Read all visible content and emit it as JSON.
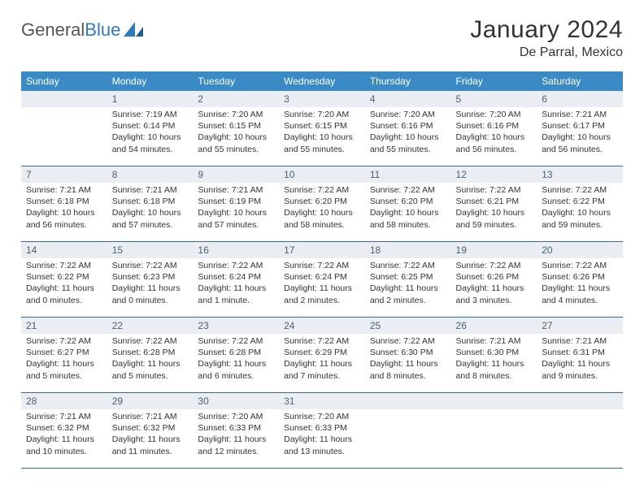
{
  "logo": {
    "text1": "General",
    "text2": "Blue"
  },
  "title": "January 2024",
  "location": "De Parral, Mexico",
  "colors": {
    "header_bg": "#3a8ac6",
    "header_text": "#ffffff",
    "daynum_bg": "#eaeef2",
    "daynum_text": "#4a6172",
    "rule": "#2f6fa3",
    "logo_blue": "#2f7bc0"
  },
  "weekdays": [
    "Sunday",
    "Monday",
    "Tuesday",
    "Wednesday",
    "Thursday",
    "Friday",
    "Saturday"
  ],
  "first_weekday": 1,
  "days": [
    {
      "n": 1,
      "sunrise": "7:19 AM",
      "sunset": "6:14 PM",
      "daylight": "10 hours and 54 minutes."
    },
    {
      "n": 2,
      "sunrise": "7:20 AM",
      "sunset": "6:15 PM",
      "daylight": "10 hours and 55 minutes."
    },
    {
      "n": 3,
      "sunrise": "7:20 AM",
      "sunset": "6:15 PM",
      "daylight": "10 hours and 55 minutes."
    },
    {
      "n": 4,
      "sunrise": "7:20 AM",
      "sunset": "6:16 PM",
      "daylight": "10 hours and 55 minutes."
    },
    {
      "n": 5,
      "sunrise": "7:20 AM",
      "sunset": "6:16 PM",
      "daylight": "10 hours and 56 minutes."
    },
    {
      "n": 6,
      "sunrise": "7:21 AM",
      "sunset": "6:17 PM",
      "daylight": "10 hours and 56 minutes."
    },
    {
      "n": 7,
      "sunrise": "7:21 AM",
      "sunset": "6:18 PM",
      "daylight": "10 hours and 56 minutes."
    },
    {
      "n": 8,
      "sunrise": "7:21 AM",
      "sunset": "6:18 PM",
      "daylight": "10 hours and 57 minutes."
    },
    {
      "n": 9,
      "sunrise": "7:21 AM",
      "sunset": "6:19 PM",
      "daylight": "10 hours and 57 minutes."
    },
    {
      "n": 10,
      "sunrise": "7:22 AM",
      "sunset": "6:20 PM",
      "daylight": "10 hours and 58 minutes."
    },
    {
      "n": 11,
      "sunrise": "7:22 AM",
      "sunset": "6:20 PM",
      "daylight": "10 hours and 58 minutes."
    },
    {
      "n": 12,
      "sunrise": "7:22 AM",
      "sunset": "6:21 PM",
      "daylight": "10 hours and 59 minutes."
    },
    {
      "n": 13,
      "sunrise": "7:22 AM",
      "sunset": "6:22 PM",
      "daylight": "10 hours and 59 minutes."
    },
    {
      "n": 14,
      "sunrise": "7:22 AM",
      "sunset": "6:22 PM",
      "daylight": "11 hours and 0 minutes."
    },
    {
      "n": 15,
      "sunrise": "7:22 AM",
      "sunset": "6:23 PM",
      "daylight": "11 hours and 0 minutes."
    },
    {
      "n": 16,
      "sunrise": "7:22 AM",
      "sunset": "6:24 PM",
      "daylight": "11 hours and 1 minute."
    },
    {
      "n": 17,
      "sunrise": "7:22 AM",
      "sunset": "6:24 PM",
      "daylight": "11 hours and 2 minutes."
    },
    {
      "n": 18,
      "sunrise": "7:22 AM",
      "sunset": "6:25 PM",
      "daylight": "11 hours and 2 minutes."
    },
    {
      "n": 19,
      "sunrise": "7:22 AM",
      "sunset": "6:26 PM",
      "daylight": "11 hours and 3 minutes."
    },
    {
      "n": 20,
      "sunrise": "7:22 AM",
      "sunset": "6:26 PM",
      "daylight": "11 hours and 4 minutes."
    },
    {
      "n": 21,
      "sunrise": "7:22 AM",
      "sunset": "6:27 PM",
      "daylight": "11 hours and 5 minutes."
    },
    {
      "n": 22,
      "sunrise": "7:22 AM",
      "sunset": "6:28 PM",
      "daylight": "11 hours and 5 minutes."
    },
    {
      "n": 23,
      "sunrise": "7:22 AM",
      "sunset": "6:28 PM",
      "daylight": "11 hours and 6 minutes."
    },
    {
      "n": 24,
      "sunrise": "7:22 AM",
      "sunset": "6:29 PM",
      "daylight": "11 hours and 7 minutes."
    },
    {
      "n": 25,
      "sunrise": "7:22 AM",
      "sunset": "6:30 PM",
      "daylight": "11 hours and 8 minutes."
    },
    {
      "n": 26,
      "sunrise": "7:21 AM",
      "sunset": "6:30 PM",
      "daylight": "11 hours and 8 minutes."
    },
    {
      "n": 27,
      "sunrise": "7:21 AM",
      "sunset": "6:31 PM",
      "daylight": "11 hours and 9 minutes."
    },
    {
      "n": 28,
      "sunrise": "7:21 AM",
      "sunset": "6:32 PM",
      "daylight": "11 hours and 10 minutes."
    },
    {
      "n": 29,
      "sunrise": "7:21 AM",
      "sunset": "6:32 PM",
      "daylight": "11 hours and 11 minutes."
    },
    {
      "n": 30,
      "sunrise": "7:20 AM",
      "sunset": "6:33 PM",
      "daylight": "11 hours and 12 minutes."
    },
    {
      "n": 31,
      "sunrise": "7:20 AM",
      "sunset": "6:33 PM",
      "daylight": "11 hours and 13 minutes."
    }
  ],
  "labels": {
    "sunrise": "Sunrise:",
    "sunset": "Sunset:",
    "daylight": "Daylight:"
  }
}
